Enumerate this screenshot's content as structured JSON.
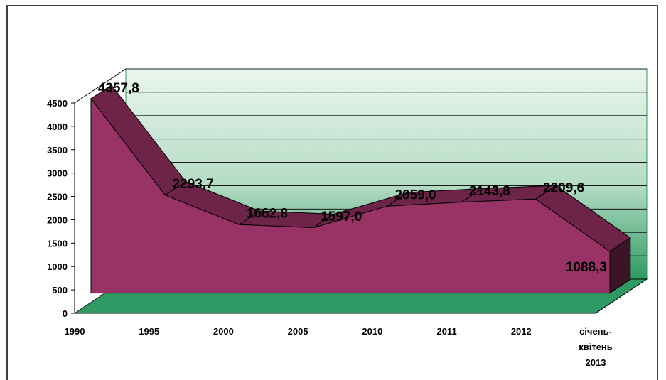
{
  "chart_data": {
    "type": "area3d",
    "categories": [
      "1990",
      "1995",
      "2000",
      "2005",
      "2010",
      "2011",
      "2012",
      "січень-квітень 2013"
    ],
    "values": [
      4357.8,
      2293.7,
      1662.8,
      1597.0,
      2059.0,
      2143.8,
      2209.6,
      1088.3
    ],
    "value_labels": [
      "4357,8",
      "2293,7",
      "1662,8",
      "1597,0",
      "2059,0",
      "2143,8",
      "2209,6",
      "1088,3"
    ],
    "color": "#993366",
    "ylim": [
      0,
      4500
    ],
    "yticks": [
      0,
      500,
      1000,
      1500,
      2000,
      2500,
      3000,
      3500,
      4000,
      4500
    ],
    "grid": true
  }
}
